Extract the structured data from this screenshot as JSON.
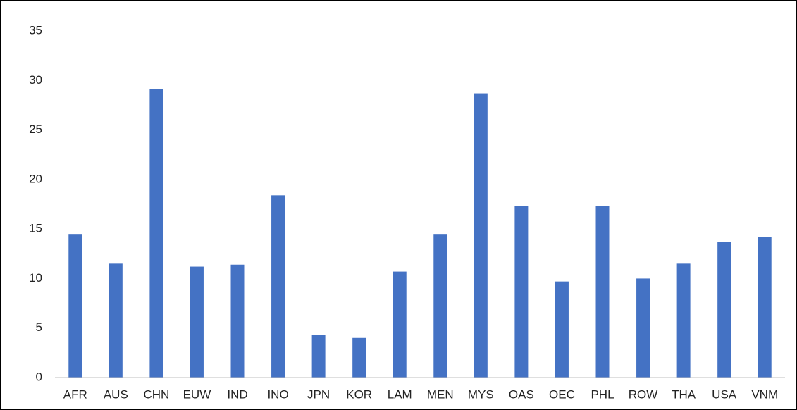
{
  "chart_data": {
    "type": "bar",
    "categories": [
      "AFR",
      "AUS",
      "CHN",
      "EUW",
      "IND",
      "INO",
      "JPN",
      "KOR",
      "LAM",
      "MEN",
      "MYS",
      "OAS",
      "OEC",
      "PHL",
      "ROW",
      "THA",
      "USA",
      "VNM"
    ],
    "values": [
      14.5,
      11.5,
      29.1,
      11.2,
      11.4,
      18.4,
      4.3,
      4.0,
      10.7,
      14.5,
      28.7,
      17.3,
      9.7,
      17.3,
      10.0,
      11.5,
      13.7,
      14.2
    ],
    "color": "#4472c4",
    "ylim": [
      0,
      35
    ],
    "yticks": [
      0,
      5,
      10,
      15,
      20,
      25,
      30,
      35
    ],
    "grid": false
  }
}
